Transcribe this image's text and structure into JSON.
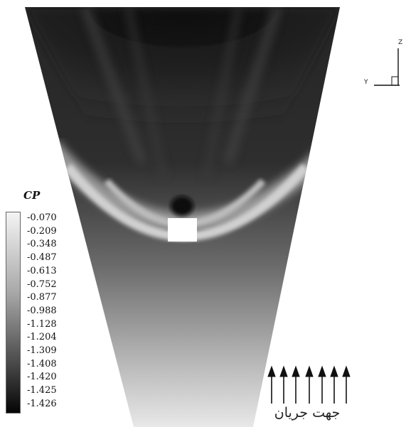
{
  "legend": {
    "title": "CP",
    "levels": [
      "-0.070",
      "-0.209",
      "-0.348",
      "-0.487",
      "-0.613",
      "-0.752",
      "-0.877",
      "-0.988",
      "-1.128",
      "-1.204",
      "-1.309",
      "-1.408",
      "-1.420",
      "-1.425",
      "-1.426"
    ],
    "color_high": "#f4f4f4",
    "color_low": "#050505"
  },
  "flow_direction": {
    "label": "جهت جریان",
    "arrow_count": 7
  },
  "axes": {
    "z_label": "Z",
    "y_label": "Y"
  },
  "colors": {
    "field_dark": "#1c1c1c",
    "field_mid": "#5c5c5c",
    "band_light": "#cfcfcf",
    "obstacle": "#ffffff"
  }
}
